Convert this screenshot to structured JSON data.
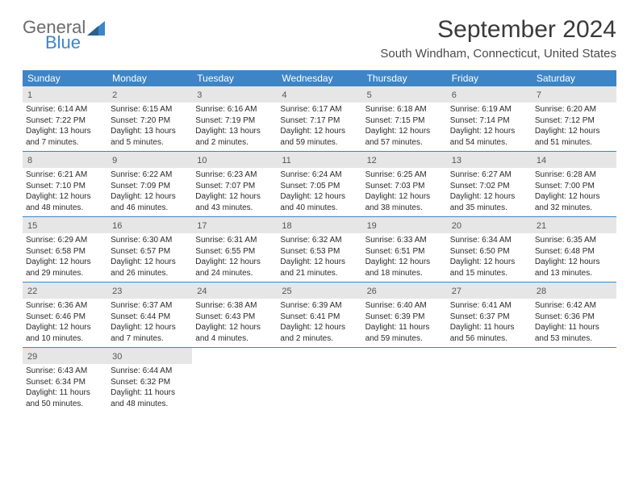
{
  "logo": {
    "line1": "General",
    "line2": "Blue"
  },
  "title": "September 2024",
  "location": "South Windham, Connecticut, United States",
  "header_color": "#3d85c6",
  "daynum_bg": "#e6e6e6",
  "weekdays": [
    "Sunday",
    "Monday",
    "Tuesday",
    "Wednesday",
    "Thursday",
    "Friday",
    "Saturday"
  ],
  "weeks": [
    [
      {
        "n": "1",
        "sr": "6:14 AM",
        "ss": "7:22 PM",
        "dl": "13 hours and 7 minutes."
      },
      {
        "n": "2",
        "sr": "6:15 AM",
        "ss": "7:20 PM",
        "dl": "13 hours and 5 minutes."
      },
      {
        "n": "3",
        "sr": "6:16 AM",
        "ss": "7:19 PM",
        "dl": "13 hours and 2 minutes."
      },
      {
        "n": "4",
        "sr": "6:17 AM",
        "ss": "7:17 PM",
        "dl": "12 hours and 59 minutes."
      },
      {
        "n": "5",
        "sr": "6:18 AM",
        "ss": "7:15 PM",
        "dl": "12 hours and 57 minutes."
      },
      {
        "n": "6",
        "sr": "6:19 AM",
        "ss": "7:14 PM",
        "dl": "12 hours and 54 minutes."
      },
      {
        "n": "7",
        "sr": "6:20 AM",
        "ss": "7:12 PM",
        "dl": "12 hours and 51 minutes."
      }
    ],
    [
      {
        "n": "8",
        "sr": "6:21 AM",
        "ss": "7:10 PM",
        "dl": "12 hours and 48 minutes."
      },
      {
        "n": "9",
        "sr": "6:22 AM",
        "ss": "7:09 PM",
        "dl": "12 hours and 46 minutes."
      },
      {
        "n": "10",
        "sr": "6:23 AM",
        "ss": "7:07 PM",
        "dl": "12 hours and 43 minutes."
      },
      {
        "n": "11",
        "sr": "6:24 AM",
        "ss": "7:05 PM",
        "dl": "12 hours and 40 minutes."
      },
      {
        "n": "12",
        "sr": "6:25 AM",
        "ss": "7:03 PM",
        "dl": "12 hours and 38 minutes."
      },
      {
        "n": "13",
        "sr": "6:27 AM",
        "ss": "7:02 PM",
        "dl": "12 hours and 35 minutes."
      },
      {
        "n": "14",
        "sr": "6:28 AM",
        "ss": "7:00 PM",
        "dl": "12 hours and 32 minutes."
      }
    ],
    [
      {
        "n": "15",
        "sr": "6:29 AM",
        "ss": "6:58 PM",
        "dl": "12 hours and 29 minutes."
      },
      {
        "n": "16",
        "sr": "6:30 AM",
        "ss": "6:57 PM",
        "dl": "12 hours and 26 minutes."
      },
      {
        "n": "17",
        "sr": "6:31 AM",
        "ss": "6:55 PM",
        "dl": "12 hours and 24 minutes."
      },
      {
        "n": "18",
        "sr": "6:32 AM",
        "ss": "6:53 PM",
        "dl": "12 hours and 21 minutes."
      },
      {
        "n": "19",
        "sr": "6:33 AM",
        "ss": "6:51 PM",
        "dl": "12 hours and 18 minutes."
      },
      {
        "n": "20",
        "sr": "6:34 AM",
        "ss": "6:50 PM",
        "dl": "12 hours and 15 minutes."
      },
      {
        "n": "21",
        "sr": "6:35 AM",
        "ss": "6:48 PM",
        "dl": "12 hours and 13 minutes."
      }
    ],
    [
      {
        "n": "22",
        "sr": "6:36 AM",
        "ss": "6:46 PM",
        "dl": "12 hours and 10 minutes."
      },
      {
        "n": "23",
        "sr": "6:37 AM",
        "ss": "6:44 PM",
        "dl": "12 hours and 7 minutes."
      },
      {
        "n": "24",
        "sr": "6:38 AM",
        "ss": "6:43 PM",
        "dl": "12 hours and 4 minutes."
      },
      {
        "n": "25",
        "sr": "6:39 AM",
        "ss": "6:41 PM",
        "dl": "12 hours and 2 minutes."
      },
      {
        "n": "26",
        "sr": "6:40 AM",
        "ss": "6:39 PM",
        "dl": "11 hours and 59 minutes."
      },
      {
        "n": "27",
        "sr": "6:41 AM",
        "ss": "6:37 PM",
        "dl": "11 hours and 56 minutes."
      },
      {
        "n": "28",
        "sr": "6:42 AM",
        "ss": "6:36 PM",
        "dl": "11 hours and 53 minutes."
      }
    ],
    [
      {
        "n": "29",
        "sr": "6:43 AM",
        "ss": "6:34 PM",
        "dl": "11 hours and 50 minutes."
      },
      {
        "n": "30",
        "sr": "6:44 AM",
        "ss": "6:32 PM",
        "dl": "11 hours and 48 minutes."
      },
      null,
      null,
      null,
      null,
      null
    ]
  ],
  "labels": {
    "sunrise": "Sunrise: ",
    "sunset": "Sunset: ",
    "daylight": "Daylight: "
  }
}
